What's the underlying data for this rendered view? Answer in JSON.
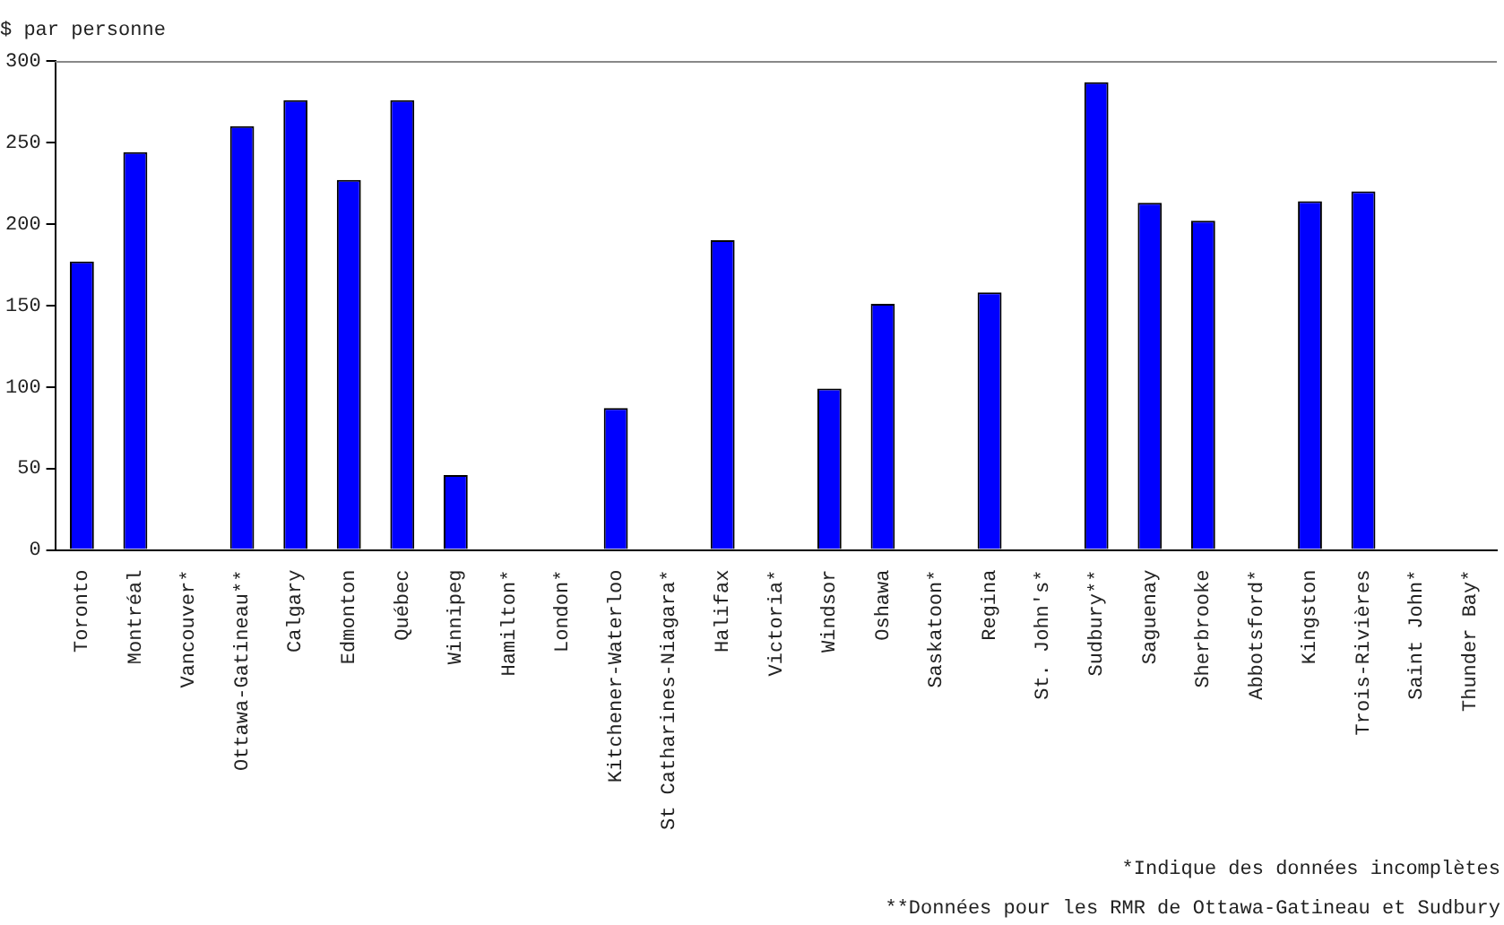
{
  "chart_data": {
    "type": "bar",
    "ylabel": "$ par personne",
    "categories": [
      "Toronto",
      "Montréal",
      "Vancouver*",
      "Ottawa-Gatineau**",
      "Calgary",
      "Edmonton",
      "Québec",
      "Winnipeg",
      "Hamilton*",
      "London*",
      "Kitchener-Waterloo",
      "St Catharines-Niagara*",
      "Halifax",
      "Victoria*",
      "Windsor",
      "Oshawa",
      "Saskatoon*",
      "Regina",
      "St. John's*",
      "Sudbury**",
      "Saguenay",
      "Sherbrooke",
      "Abbotsford*",
      "Kingston",
      "Trois-Rivières",
      "Saint John*",
      "Thunder Bay*"
    ],
    "values": [
      177,
      244,
      null,
      260,
      276,
      227,
      276,
      46,
      null,
      null,
      87,
      null,
      190,
      null,
      99,
      151,
      null,
      158,
      null,
      287,
      213,
      202,
      null,
      214,
      220,
      null,
      null
    ],
    "color": "#0000ff",
    "ylim": [
      0,
      300
    ],
    "yticks": [
      0,
      50,
      100,
      150,
      200,
      250,
      300
    ],
    "annotations": [
      "*Indique des données incomplètes",
      "**Données pour les RMR de Ottawa-Gatineau et Sudbury"
    ]
  }
}
